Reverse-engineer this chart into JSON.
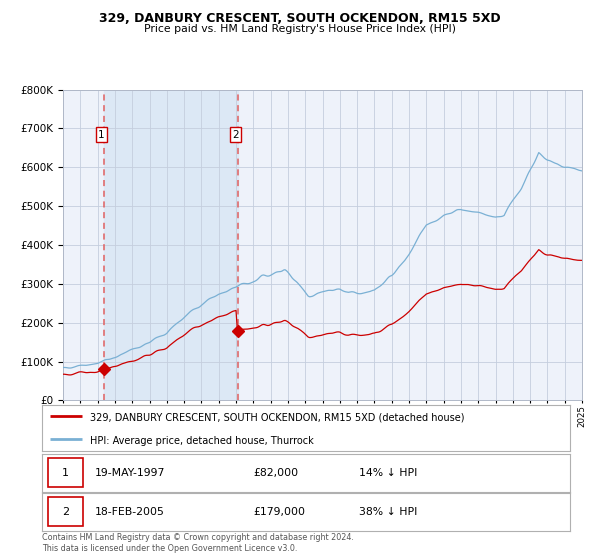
{
  "title": "329, DANBURY CRESCENT, SOUTH OCKENDON, RM15 5XD",
  "subtitle": "Price paid vs. HM Land Registry's House Price Index (HPI)",
  "legend_line1": "329, DANBURY CRESCENT, SOUTH OCKENDON, RM15 5XD (detached house)",
  "legend_line2": "HPI: Average price, detached house, Thurrock",
  "sale1_date": "19-MAY-1997",
  "sale1_price": "£82,000",
  "sale1_hpi": "14% ↓ HPI",
  "sale1_year": 1997.38,
  "sale1_value": 82000,
  "sale2_date": "18-FEB-2005",
  "sale2_price": "£179,000",
  "sale2_hpi": "38% ↓ HPI",
  "sale2_year": 2005.12,
  "sale2_value": 179000,
  "xmin": 1995,
  "xmax": 2025,
  "ymin": 0,
  "ymax": 800000,
  "background_color": "#ffffff",
  "plot_bg_color": "#eef2fa",
  "shade_color": "#dce8f5",
  "grid_color": "#c5cede",
  "red_line_color": "#cc0000",
  "blue_line_color": "#7ab0d4",
  "dashed_line_color": "#e06060",
  "footnote": "Contains HM Land Registry data © Crown copyright and database right 2024.\nThis data is licensed under the Open Government Licence v3.0."
}
